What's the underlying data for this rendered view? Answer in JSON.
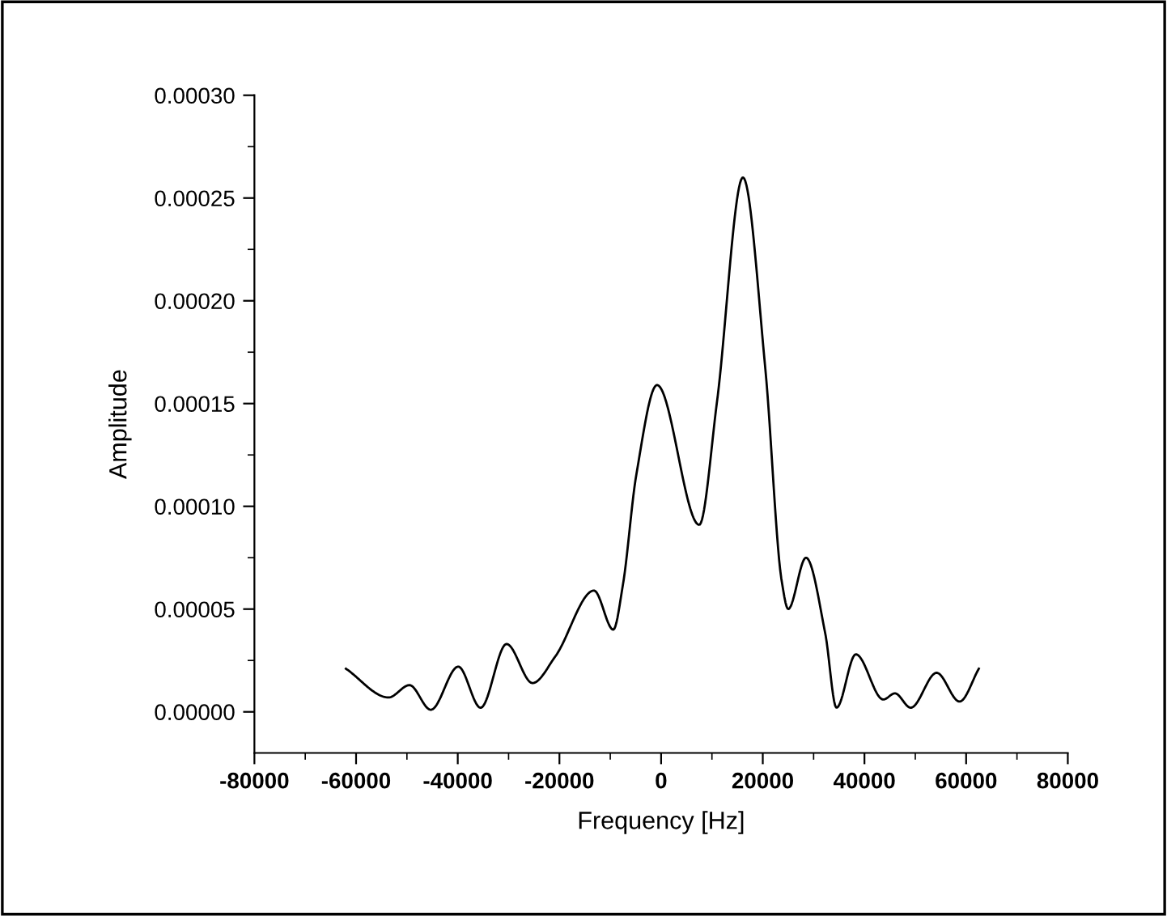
{
  "chart_data": {
    "type": "line",
    "xlabel": "Frequency [Hz]",
    "ylabel": "Amplitude",
    "color": "#000000",
    "x": [
      -62000,
      -53600,
      -49500,
      -45300,
      -39900,
      -35500,
      -30400,
      -25300,
      -20800,
      -13200,
      -9400,
      -7500,
      -4900,
      -800,
      7500,
      11000,
      16100,
      20500,
      23700,
      25000,
      28500,
      32300,
      34500,
      38300,
      43700,
      46000,
      49100,
      54200,
      58700,
      62500
    ],
    "values": [
      2.1e-05,
      7e-06,
      1.3e-05,
      1e-06,
      2.2e-05,
      2e-06,
      3.3e-05,
      1.4e-05,
      2.7e-05,
      5.9e-05,
      4e-05,
      6.2e-05,
      0.000115,
      0.000159,
      9.1e-05,
      0.000151,
      0.00026,
      0.000167,
      6.4e-05,
      5e-05,
      7.5e-05,
      3.8e-05,
      2e-06,
      2.8e-05,
      6e-06,
      9e-06,
      2e-06,
      1.9e-05,
      5e-06,
      2.1e-05
    ],
    "xlim": [
      -80000,
      80000
    ],
    "ylim": [
      -2e-05,
      0.0003
    ],
    "xticks": [
      -80000,
      -60000,
      -40000,
      -20000,
      0,
      20000,
      40000,
      60000,
      80000
    ],
    "yticks": [
      {
        "value": 0,
        "label": "0.00000"
      },
      {
        "value": 5e-05,
        "label": "0.00005"
      },
      {
        "value": 0.0001,
        "label": "0.00010"
      },
      {
        "value": 0.00015,
        "label": "0.00015"
      },
      {
        "value": 0.0002,
        "label": "0.00020"
      },
      {
        "value": 0.00025,
        "label": "0.00025"
      },
      {
        "value": 0.0003,
        "label": "0.00030"
      }
    ],
    "grid": false,
    "marker": "none",
    "line_style": "solid"
  }
}
